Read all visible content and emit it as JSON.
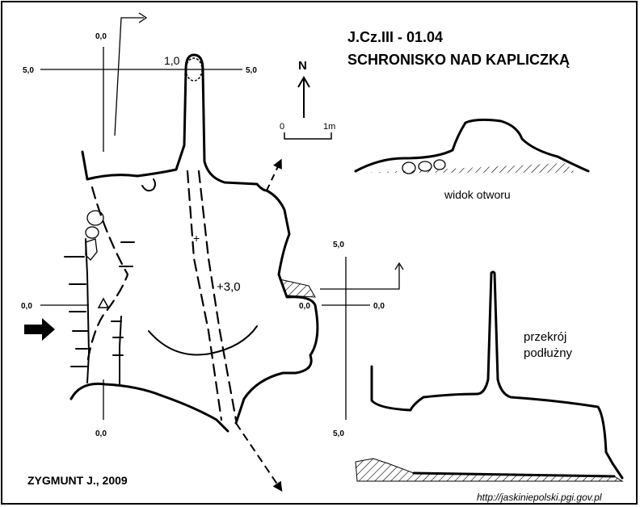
{
  "header": {
    "id_code": "J.Cz.III - 01.04",
    "cave_name": "SCHRONISKO NAD KAPLICZKĄ"
  },
  "plan": {
    "north_label": "N",
    "scale_start": "0",
    "scale_end": "1m",
    "coord_top_left": "0,0",
    "coord_top_5_left": "5,0",
    "coord_top_5_right": "5,0",
    "coord_depth": "1,0",
    "coord_left_mid": "0,0",
    "coord_bottom": "0,0",
    "height_mark": "+3,0",
    "plus_mark": "+"
  },
  "entrance_view": {
    "label": "widok otworu"
  },
  "section": {
    "label_line1": "przekrój",
    "label_line2": "podłużny",
    "coord_top": "5,0",
    "coord_left": "0,0",
    "coord_right": "0,0",
    "coord_bottom": "5,0"
  },
  "footer": {
    "author": "ZYGMUNT J., 2009",
    "source_url": "http://jaskiniepolski.pgi.gov.pl"
  }
}
